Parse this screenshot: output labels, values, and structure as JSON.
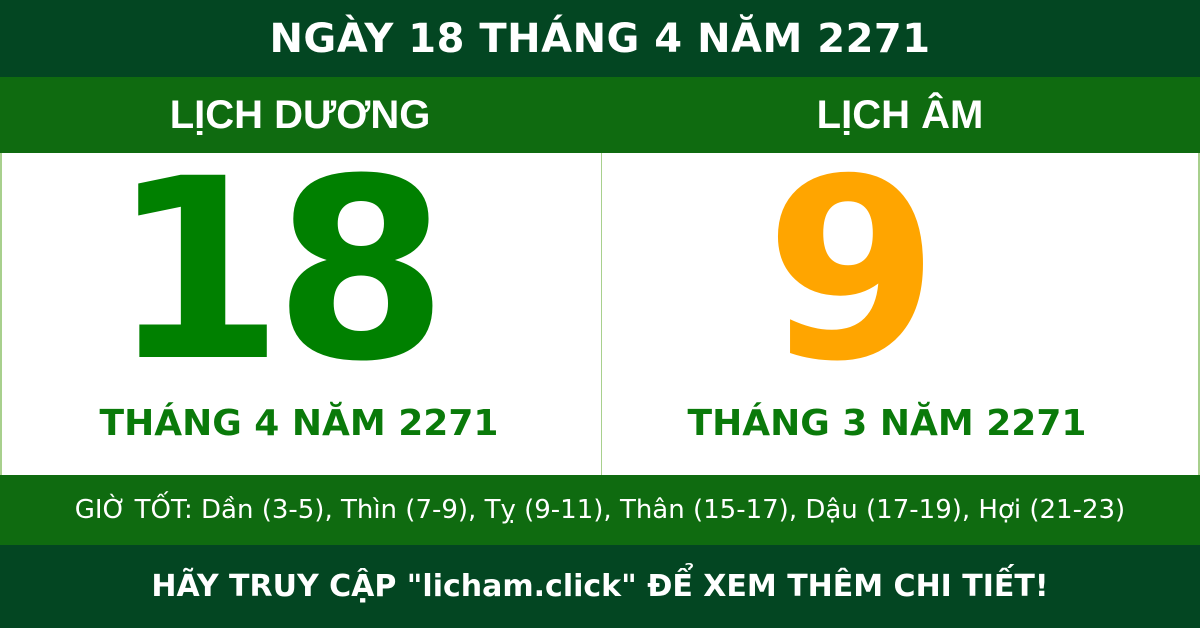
{
  "header": {
    "title": "NGÀY 18 THÁNG 4 NĂM 2271"
  },
  "solar": {
    "label": "LỊCH DƯƠNG",
    "day": "18",
    "month_year": "THÁNG 4 NĂM 2271",
    "color": "#008000"
  },
  "lunar": {
    "label": "LỊCH ÂM",
    "day": "9",
    "month_year": "THÁNG 3 NĂM 2271",
    "color": "#FFA500"
  },
  "good_hours": "GIỜ TỐT: Dần (3-5), Thìn (7-9), Tỵ (9-11), Thân (15-17), Dậu (17-19), Hợi (21-23)",
  "footer": {
    "text": "HÃY TRUY CẬP \"licham.click\" ĐỂ XEM THÊM CHI TIẾT!"
  }
}
